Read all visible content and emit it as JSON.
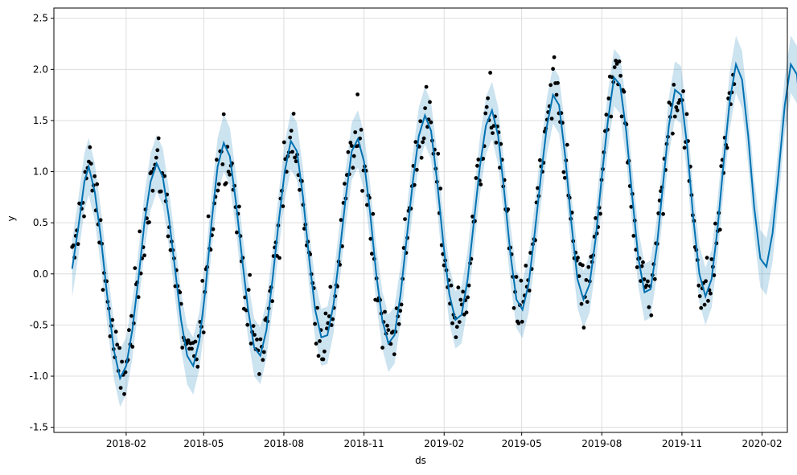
{
  "chart_data": {
    "type": "line",
    "xlabel": "ds",
    "ylabel": "y",
    "xlim": [
      "2017-11-10",
      "2020-03-01"
    ],
    "ylim": [
      -1.55,
      2.6
    ],
    "grid": true,
    "xticks": [
      {
        "date": "2018-02-01",
        "label": "2018-02"
      },
      {
        "date": "2018-05-01",
        "label": "2018-05"
      },
      {
        "date": "2018-08-01",
        "label": "2018-08"
      },
      {
        "date": "2018-11-01",
        "label": "2018-11"
      },
      {
        "date": "2019-02-01",
        "label": "2019-02"
      },
      {
        "date": "2019-05-01",
        "label": "2019-05"
      },
      {
        "date": "2019-08-01",
        "label": "2019-08"
      },
      {
        "date": "2019-11-01",
        "label": "2019-11"
      },
      {
        "date": "2020-02-01",
        "label": "2020-02"
      }
    ],
    "yticks": [
      -1.5,
      -1.0,
      -0.5,
      0.0,
      0.5,
      1.0,
      1.5,
      2.0,
      2.5
    ],
    "series": [
      {
        "kind": "forecast-line",
        "color": "#0072B2",
        "points": [
          [
            "2017-12-01",
            0.05
          ],
          [
            "2017-12-08",
            0.45
          ],
          [
            "2017-12-15",
            0.9
          ],
          [
            "2017-12-20",
            1.05
          ],
          [
            "2017-12-27",
            0.8
          ],
          [
            "2018-01-03",
            0.35
          ],
          [
            "2018-01-10",
            -0.2
          ],
          [
            "2018-01-18",
            -0.75
          ],
          [
            "2018-01-25",
            -1.02
          ],
          [
            "2018-02-01",
            -0.9
          ],
          [
            "2018-02-08",
            -0.55
          ],
          [
            "2018-02-15",
            -0.05
          ],
          [
            "2018-02-22",
            0.5
          ],
          [
            "2018-03-01",
            0.9
          ],
          [
            "2018-03-08",
            1.08
          ],
          [
            "2018-03-15",
            0.95
          ],
          [
            "2018-03-22",
            0.55
          ],
          [
            "2018-03-29",
            0.05
          ],
          [
            "2018-04-05",
            -0.45
          ],
          [
            "2018-04-12",
            -0.8
          ],
          [
            "2018-04-19",
            -0.9
          ],
          [
            "2018-04-26",
            -0.65
          ],
          [
            "2018-05-03",
            -0.15
          ],
          [
            "2018-05-10",
            0.5
          ],
          [
            "2018-05-17",
            1.05
          ],
          [
            "2018-05-24",
            1.28
          ],
          [
            "2018-05-31",
            1.15
          ],
          [
            "2018-06-07",
            0.7
          ],
          [
            "2018-06-14",
            0.15
          ],
          [
            "2018-06-21",
            -0.35
          ],
          [
            "2018-06-28",
            -0.72
          ],
          [
            "2018-07-05",
            -0.8
          ],
          [
            "2018-07-12",
            -0.55
          ],
          [
            "2018-07-19",
            -0.05
          ],
          [
            "2018-07-26",
            0.5
          ],
          [
            "2018-08-02",
            1.0
          ],
          [
            "2018-08-09",
            1.3
          ],
          [
            "2018-08-16",
            1.2
          ],
          [
            "2018-08-23",
            0.75
          ],
          [
            "2018-08-30",
            0.15
          ],
          [
            "2018-09-06",
            -0.35
          ],
          [
            "2018-09-13",
            -0.62
          ],
          [
            "2018-09-20",
            -0.6
          ],
          [
            "2018-09-27",
            -0.3
          ],
          [
            "2018-10-04",
            0.2
          ],
          [
            "2018-10-11",
            0.75
          ],
          [
            "2018-10-18",
            1.2
          ],
          [
            "2018-10-25",
            1.32
          ],
          [
            "2018-11-01",
            1.1
          ],
          [
            "2018-11-08",
            0.6
          ],
          [
            "2018-11-15",
            0.0
          ],
          [
            "2018-11-22",
            -0.45
          ],
          [
            "2018-11-29",
            -0.68
          ],
          [
            "2018-12-06",
            -0.6
          ],
          [
            "2018-12-13",
            -0.2
          ],
          [
            "2018-12-20",
            0.35
          ],
          [
            "2018-12-27",
            0.9
          ],
          [
            "2019-01-03",
            1.35
          ],
          [
            "2019-01-10",
            1.55
          ],
          [
            "2019-01-17",
            1.4
          ],
          [
            "2019-01-24",
            0.9
          ],
          [
            "2019-01-31",
            0.3
          ],
          [
            "2019-02-07",
            -0.2
          ],
          [
            "2019-02-14",
            -0.45
          ],
          [
            "2019-02-21",
            -0.4
          ],
          [
            "2019-02-28",
            -0.05
          ],
          [
            "2019-03-07",
            0.5
          ],
          [
            "2019-03-14",
            1.05
          ],
          [
            "2019-03-21",
            1.45
          ],
          [
            "2019-03-28",
            1.6
          ],
          [
            "2019-04-04",
            1.35
          ],
          [
            "2019-04-11",
            0.8
          ],
          [
            "2019-04-18",
            0.2
          ],
          [
            "2019-04-25",
            -0.25
          ],
          [
            "2019-05-02",
            -0.35
          ],
          [
            "2019-05-09",
            -0.1
          ],
          [
            "2019-05-16",
            0.4
          ],
          [
            "2019-05-23",
            0.95
          ],
          [
            "2019-05-30",
            1.45
          ],
          [
            "2019-06-06",
            1.75
          ],
          [
            "2019-06-13",
            1.65
          ],
          [
            "2019-06-20",
            1.15
          ],
          [
            "2019-06-27",
            0.5
          ],
          [
            "2019-07-04",
            -0.05
          ],
          [
            "2019-07-11",
            -0.25
          ],
          [
            "2019-07-18",
            -0.1
          ],
          [
            "2019-07-25",
            0.35
          ],
          [
            "2019-08-01",
            0.95
          ],
          [
            "2019-08-08",
            1.5
          ],
          [
            "2019-08-15",
            1.92
          ],
          [
            "2019-08-22",
            1.85
          ],
          [
            "2019-08-29",
            1.4
          ],
          [
            "2019-09-05",
            0.75
          ],
          [
            "2019-09-12",
            0.15
          ],
          [
            "2019-09-19",
            -0.18
          ],
          [
            "2019-09-26",
            -0.15
          ],
          [
            "2019-10-03",
            0.25
          ],
          [
            "2019-10-10",
            0.85
          ],
          [
            "2019-10-17",
            1.45
          ],
          [
            "2019-10-24",
            1.8
          ],
          [
            "2019-10-31",
            1.75
          ],
          [
            "2019-11-07",
            1.25
          ],
          [
            "2019-11-14",
            0.55
          ],
          [
            "2019-11-21",
            0.0
          ],
          [
            "2019-11-28",
            -0.22
          ],
          [
            "2019-12-05",
            -0.05
          ],
          [
            "2019-12-12",
            0.45
          ],
          [
            "2019-12-19",
            1.1
          ],
          [
            "2019-12-26",
            1.7
          ],
          [
            "2020-01-02",
            2.05
          ],
          [
            "2020-01-09",
            1.9
          ],
          [
            "2020-01-16",
            1.35
          ],
          [
            "2020-01-23",
            0.65
          ],
          [
            "2020-01-30",
            0.15
          ],
          [
            "2020-02-06",
            0.07
          ],
          [
            "2020-02-13",
            0.4
          ],
          [
            "2020-02-20",
            1.0
          ],
          [
            "2020-02-27",
            1.65
          ],
          [
            "2020-03-05",
            2.05
          ],
          [
            "2020-03-12",
            1.95
          ],
          [
            "2020-03-19",
            1.3
          ]
        ]
      }
    ],
    "uncertainty_band": {
      "color": "#0072B2",
      "opacity": 0.2,
      "half_width": 0.28
    },
    "observed_points": {
      "color": "#000000",
      "noise_sd": 0.16,
      "count": 560
    }
  }
}
